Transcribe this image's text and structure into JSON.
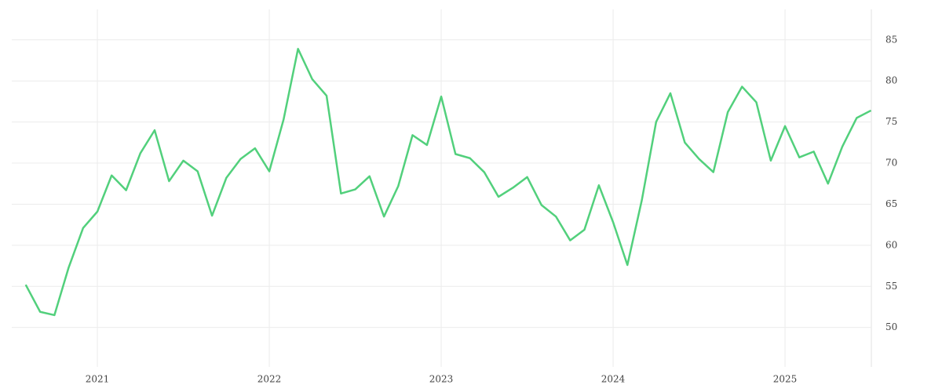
{
  "chart_data": {
    "type": "line",
    "x": [
      2020.583,
      2020.667,
      2020.75,
      2020.833,
      2020.917,
      2021.0,
      2021.083,
      2021.167,
      2021.25,
      2021.333,
      2021.417,
      2021.5,
      2021.583,
      2021.667,
      2021.75,
      2021.833,
      2021.917,
      2022.0,
      2022.083,
      2022.167,
      2022.25,
      2022.333,
      2022.417,
      2022.5,
      2022.583,
      2022.667,
      2022.75,
      2022.833,
      2022.917,
      2023.0,
      2023.083,
      2023.167,
      2023.25,
      2023.333,
      2023.417,
      2023.5,
      2023.583,
      2023.667,
      2023.75,
      2023.833,
      2023.917,
      2024.0,
      2024.083,
      2024.167,
      2024.25,
      2024.333,
      2024.417,
      2024.5,
      2024.583,
      2024.667,
      2024.75,
      2024.833,
      2024.917,
      2025.0,
      2025.083,
      2025.167,
      2025.25,
      2025.333,
      2025.417,
      2025.5
    ],
    "series": [
      {
        "color": "#52d07c",
        "values": [
          55.2,
          51.9,
          51.5,
          57.3,
          62.1,
          64.1,
          68.5,
          66.7,
          71.2,
          74.0,
          67.8,
          70.3,
          69.0,
          63.6,
          68.2,
          70.5,
          71.8,
          69.0,
          75.3,
          83.9,
          80.2,
          78.2,
          66.3,
          66.8,
          68.4,
          63.5,
          67.2,
          73.4,
          72.2,
          78.1,
          71.1,
          70.6,
          68.9,
          65.9,
          67.0,
          68.3,
          64.9,
          63.5,
          60.6,
          61.9,
          67.3,
          62.8,
          57.6,
          65.5,
          75.0,
          78.5,
          72.5,
          70.5,
          68.9,
          76.2,
          79.3,
          77.4,
          70.3,
          74.5,
          70.7,
          71.4,
          67.5,
          72.0,
          75.5,
          76.4
        ]
      }
    ],
    "xlim": [
      2020.502,
      2025.502
    ],
    "xticks": [
      2021,
      2022,
      2023,
      2024,
      2025
    ],
    "ylim": [
      45.2,
      88.7
    ],
    "yticks": [
      50,
      55,
      60,
      65,
      70,
      75,
      80,
      85
    ],
    "grid": true
  }
}
